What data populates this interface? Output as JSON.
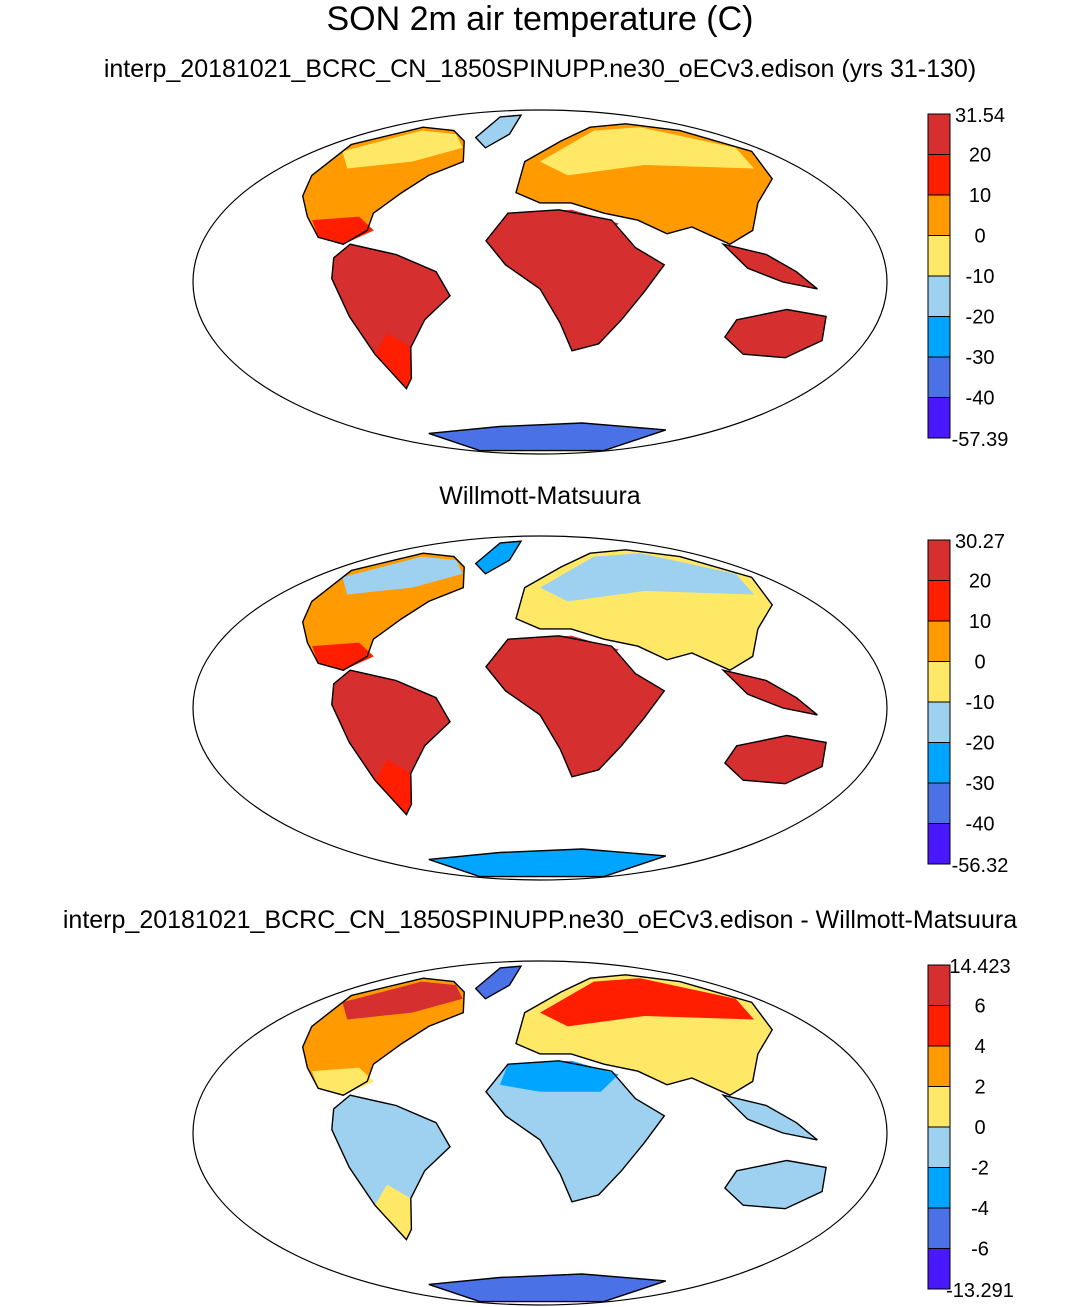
{
  "figure": {
    "title": "SON 2m air temperature (C)"
  },
  "panels": [
    {
      "title": "interp_20181021_BCRC_CN_1850SPINUPP.ne30_oECv3.edison (yrs 31-130)",
      "colorbar": {
        "labels": [
          "31.54",
          "20",
          "10",
          "0",
          "-10",
          "-20",
          "-30",
          "-40",
          "-57.39"
        ],
        "colors": [
          "#d62f2f",
          "#ff1f00",
          "#ff9a00",
          "#ffe866",
          "#9ed1ef",
          "#00a5ff",
          "#4a72e6",
          "#4a18ff"
        ]
      }
    },
    {
      "title": "Willmott-Matsuura",
      "colorbar": {
        "labels": [
          "30.27",
          "20",
          "10",
          "0",
          "-10",
          "-20",
          "-30",
          "-40",
          "-56.32"
        ],
        "colors": [
          "#d62f2f",
          "#ff1f00",
          "#ff9a00",
          "#ffe866",
          "#9ed1ef",
          "#00a5ff",
          "#4a72e6",
          "#4a18ff"
        ]
      }
    },
    {
      "title": "interp_20181021_BCRC_CN_1850SPINUPP.ne30_oECv3.edison - Willmott-Matsuura",
      "colorbar": {
        "labels": [
          "14.423",
          "6",
          "4",
          "2",
          "0",
          "-2",
          "-4",
          "-6",
          "-13.291"
        ],
        "colors": [
          "#d62f2f",
          "#ff1f00",
          "#ff9a00",
          "#ffe866",
          "#9ed1ef",
          "#00a5ff",
          "#4a72e6",
          "#4a18ff"
        ]
      }
    }
  ]
}
